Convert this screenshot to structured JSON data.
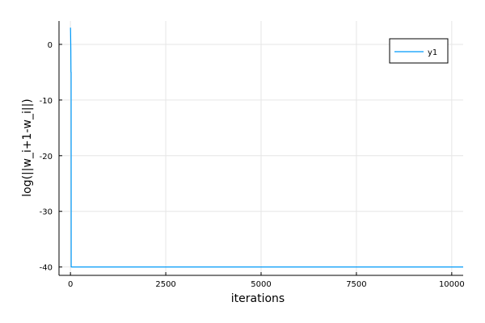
{
  "chart_data": {
    "type": "line",
    "title": "",
    "xlabel": "iterations",
    "ylabel": "log(||w_i+1-w_i||)",
    "xlim": [
      -300,
      10300
    ],
    "ylim": [
      -41.5,
      4.2
    ],
    "xticks": [
      0,
      2500,
      5000,
      7500,
      10000
    ],
    "yticks": [
      0,
      -10,
      -20,
      -30,
      -40
    ],
    "grid": true,
    "legend": {
      "position": "top-right"
    },
    "series": [
      {
        "name": "y1",
        "color": "#009af9",
        "x": [
          1,
          5,
          10,
          14,
          16,
          18,
          20,
          22,
          25,
          30,
          100,
          1000,
          5000,
          10300
        ],
        "y": [
          3.0,
          1.5,
          -1.0,
          -5.0,
          -5.0,
          -5.0,
          -40.0,
          -40.0,
          -40.0,
          -40.0,
          -40.0,
          -40.0,
          -40.0,
          -40.0
        ]
      }
    ]
  }
}
